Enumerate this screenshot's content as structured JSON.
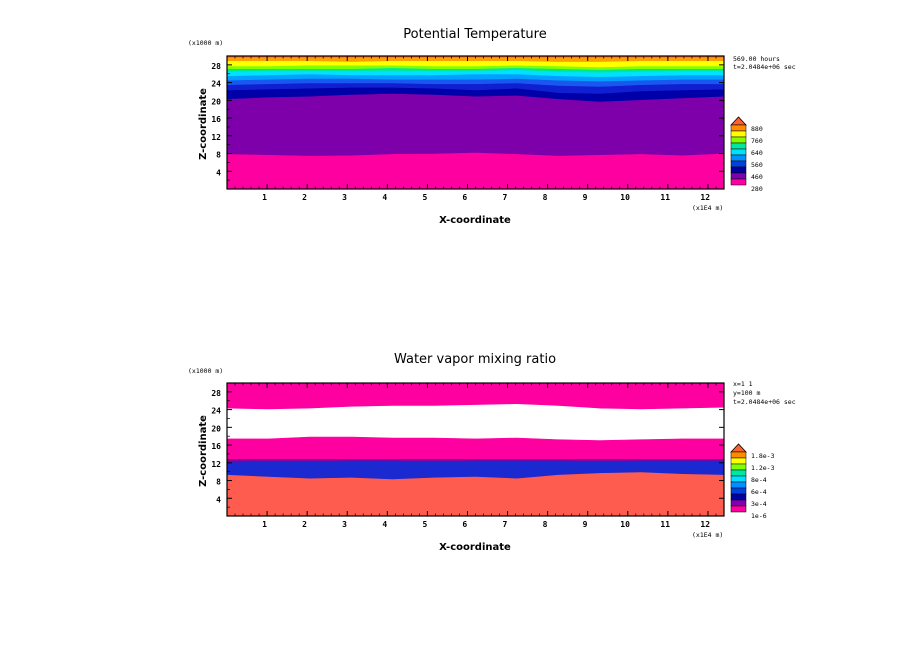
{
  "chart_data": [
    {
      "type": "heatmap",
      "title": "Potential Temperature",
      "xlabel": "X-coordinate",
      "ylabel": "Z-coordinate",
      "x_unit": "(x1E4 m)",
      "y_unit": "(x1000 m)",
      "xlim": [
        0,
        12.4
      ],
      "ylim": [
        0,
        30
      ],
      "x_ticks": [
        "1",
        "2",
        "3",
        "4",
        "5",
        "6",
        "7",
        "8",
        "9",
        "10",
        "11",
        "12"
      ],
      "y_ticks": [
        "4",
        "8",
        "12",
        "16",
        "20",
        "24",
        "28"
      ],
      "info": [
        "569.00 hours",
        "t=2.0484e+06 sec"
      ],
      "legend_labels": [
        "880",
        "760",
        "640",
        "560",
        "460",
        "280"
      ],
      "legend_colors": [
        "#ff6030",
        "#ff8c00",
        "#ffff00",
        "#80ff00",
        "#00e8a0",
        "#00e0ff",
        "#0090ff",
        "#0040e0",
        "#0000a0",
        "#8000b0",
        "#ff00a0"
      ],
      "bands": [
        {
          "color": "#ff00a0",
          "top": [
            7.8,
            7.6,
            7.4,
            7.5,
            7.8,
            7.9,
            8.1,
            7.8,
            7.4,
            7.6,
            7.8,
            7.5,
            7.9
          ]
        },
        {
          "color": "#7e00aa",
          "top": [
            20.2,
            20.6,
            20.8,
            21.2,
            21.4,
            21.2,
            20.8,
            21.0,
            20.2,
            19.6,
            20.0,
            20.4,
            20.8
          ]
        },
        {
          "color": "#0000a8",
          "top": [
            22.2,
            22.4,
            22.6,
            22.8,
            22.8,
            22.6,
            22.2,
            22.6,
            21.6,
            21.4,
            22.0,
            22.2,
            22.4
          ]
        },
        {
          "color": "#1020d0",
          "top": [
            23.4,
            23.6,
            23.8,
            23.8,
            23.8,
            23.6,
            23.6,
            23.8,
            23.2,
            23.0,
            23.4,
            23.6,
            23.6
          ]
        },
        {
          "color": "#1858f0",
          "top": [
            24.4,
            24.6,
            24.8,
            24.8,
            24.6,
            24.6,
            24.6,
            24.8,
            24.4,
            24.2,
            24.4,
            24.6,
            24.6
          ]
        },
        {
          "color": "#00a0ff",
          "top": [
            25.4,
            25.6,
            25.8,
            25.6,
            25.6,
            25.6,
            25.8,
            25.8,
            25.4,
            25.2,
            25.4,
            25.6,
            25.6
          ]
        },
        {
          "color": "#00e0ff",
          "top": [
            26.4,
            26.6,
            26.6,
            26.6,
            26.6,
            26.6,
            26.6,
            26.8,
            26.4,
            26.2,
            26.4,
            26.6,
            26.6
          ]
        },
        {
          "color": "#00e890",
          "top": [
            27.0,
            27.0,
            27.0,
            27.0,
            27.2,
            27.0,
            27.0,
            27.2,
            27.0,
            26.8,
            27.0,
            27.0,
            27.0
          ]
        },
        {
          "color": "#80ff00",
          "top": [
            27.6,
            27.6,
            27.8,
            27.8,
            27.8,
            27.6,
            27.6,
            27.8,
            27.6,
            27.4,
            27.6,
            27.6,
            27.6
          ]
        },
        {
          "color": "#ffff00",
          "top": [
            28.8,
            28.8,
            28.8,
            28.6,
            28.8,
            28.8,
            28.8,
            28.8,
            28.6,
            28.6,
            28.8,
            28.8,
            28.8
          ]
        },
        {
          "color": "#ffa000",
          "top": [
            29.6,
            29.6,
            29.6,
            29.6,
            29.6,
            29.6,
            29.6,
            29.6,
            29.6,
            29.6,
            29.6,
            29.6,
            29.6
          ]
        },
        {
          "color": "#ff6030",
          "top": [
            30,
            30,
            30,
            30,
            30,
            30,
            30,
            30,
            30,
            30,
            30,
            30,
            30
          ]
        }
      ]
    },
    {
      "type": "heatmap",
      "title": "Water vapor mixing ratio",
      "xlabel": "X-coordinate",
      "ylabel": "Z-coordinate",
      "x_unit": "(x1E4 m)",
      "y_unit": "(x1000 m)",
      "xlim": [
        0,
        12.4
      ],
      "ylim": [
        0,
        30
      ],
      "x_ticks": [
        "1",
        "2",
        "3",
        "4",
        "5",
        "6",
        "7",
        "8",
        "9",
        "10",
        "11",
        "12"
      ],
      "y_ticks": [
        "4",
        "8",
        "12",
        "16",
        "20",
        "24",
        "28"
      ],
      "info": [
        "x=1 1",
        "y=100 m",
        "t=2.0484e+06 sec"
      ],
      "legend_labels": [
        "1.8e-3",
        "1.2e-3",
        "8e-4",
        "6e-4",
        "3e-4",
        "1e-6"
      ],
      "legend_colors": [
        "#ff6030",
        "#ff8c00",
        "#ffff00",
        "#80ff00",
        "#00e8a0",
        "#00e0ff",
        "#0090ff",
        "#0040e0",
        "#0000a0",
        "#8000b0",
        "#ff00a0"
      ],
      "bands": [
        {
          "color": "#ff5c50",
          "top": [
            9.2,
            8.8,
            8.4,
            8.6,
            8.2,
            8.6,
            8.8,
            8.4,
            9.2,
            9.6,
            9.8,
            9.4,
            9.2
          ]
        },
        {
          "color": "#1a2ad0",
          "top": [
            12.0,
            12.2,
            12.2,
            12.4,
            12.4,
            12.2,
            12.4,
            12.4,
            12.4,
            12.2,
            12.4,
            12.4,
            12.4
          ]
        },
        {
          "color": "#8000a0",
          "top": [
            12.8,
            12.8,
            12.8,
            12.8,
            12.8,
            12.8,
            12.8,
            12.8,
            12.8,
            12.8,
            12.8,
            12.8,
            12.8
          ]
        },
        {
          "color": "#ff00a0",
          "top": [
            17.4,
            17.4,
            17.8,
            17.8,
            17.6,
            17.6,
            17.4,
            17.6,
            17.2,
            17.0,
            17.2,
            17.4,
            17.4
          ]
        },
        {
          "color": "#ffffff",
          "top": [
            24.2,
            24.0,
            24.2,
            24.6,
            24.8,
            24.8,
            25.0,
            25.2,
            24.8,
            24.2,
            24.0,
            24.2,
            24.4
          ]
        },
        {
          "color": "#ff00a0",
          "top": [
            30,
            30,
            30,
            30,
            30,
            30,
            30,
            30,
            30,
            30,
            30,
            30,
            30
          ]
        }
      ]
    }
  ]
}
